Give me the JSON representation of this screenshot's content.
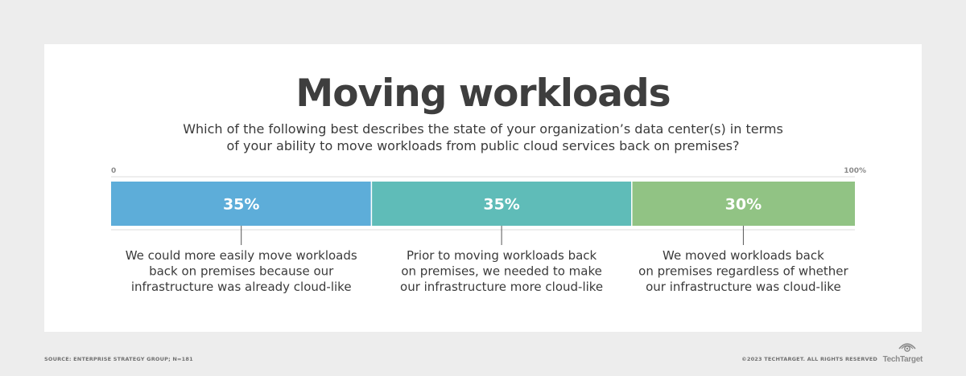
{
  "chart_data": {
    "type": "bar",
    "orientation": "horizontal-stacked",
    "title": "Moving workloads",
    "subtitle_lines": [
      "Which of the following best describes the state of your organization’s data center(s) in terms",
      "of your ability to move workloads from public cloud services back on premises?"
    ],
    "axis_min_label": "0",
    "axis_max_label": "100%",
    "xlim": [
      0,
      100
    ],
    "segments": [
      {
        "value": 35,
        "label": "35%",
        "color": "#5dadd9",
        "description_lines": [
          "We could more easily move workloads",
          "back on premises because our",
          "infrastructure was already cloud-like"
        ]
      },
      {
        "value": 35,
        "label": "35%",
        "color": "#5fbcb8",
        "description_lines": [
          "Prior to moving workloads back",
          "on premises, we needed to make",
          "our infrastructure more cloud-like"
        ]
      },
      {
        "value": 30,
        "label": "30%",
        "color": "#91c384",
        "description_lines": [
          "We moved workloads back",
          "on premises regardless of whether",
          "our infrastructure was cloud-like"
        ]
      }
    ]
  },
  "footer": {
    "source": "SOURCE: ENTERPRISE STRATEGY GROUP; N=181",
    "copyright": "©2023 TECHTARGET. ALL RIGHTS RESERVED",
    "logo_text": "TechTarget"
  }
}
